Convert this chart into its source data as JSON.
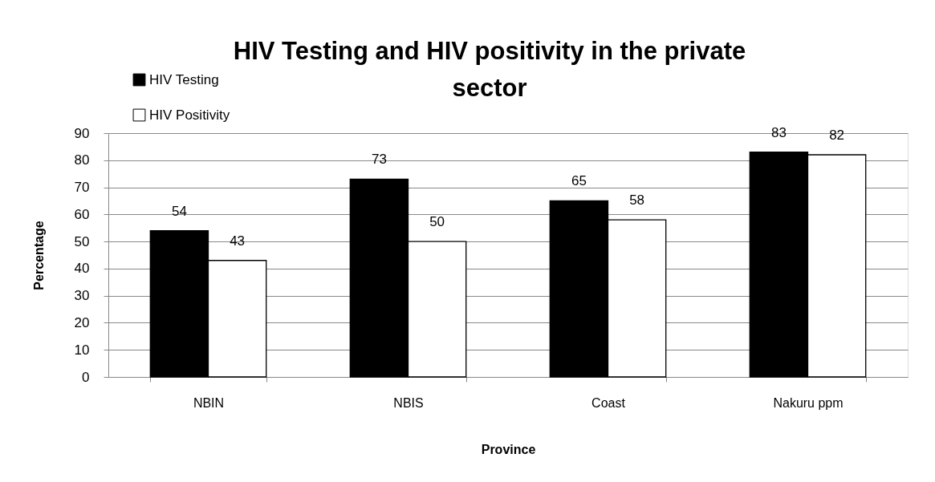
{
  "chart_data": {
    "type": "bar",
    "title": "HIV Testing and HIV positivity in the private sector",
    "xlabel": "Province",
    "ylabel": "Percentage",
    "categories": [
      "NBIN",
      "NBIS",
      "Coast",
      "Nakuru ppm"
    ],
    "series": [
      {
        "name": "HIV Testing",
        "color": "#000000",
        "values": [
          54,
          73,
          65,
          83
        ]
      },
      {
        "name": "HIV Positivity",
        "color": "#ffffff",
        "values": [
          43,
          50,
          58,
          82
        ]
      }
    ],
    "ylim": [
      0,
      90
    ],
    "yticks": [
      0,
      10,
      20,
      30,
      40,
      50,
      60,
      70,
      80,
      90
    ],
    "grid": "y",
    "legend": "top left",
    "data_labels": true
  }
}
